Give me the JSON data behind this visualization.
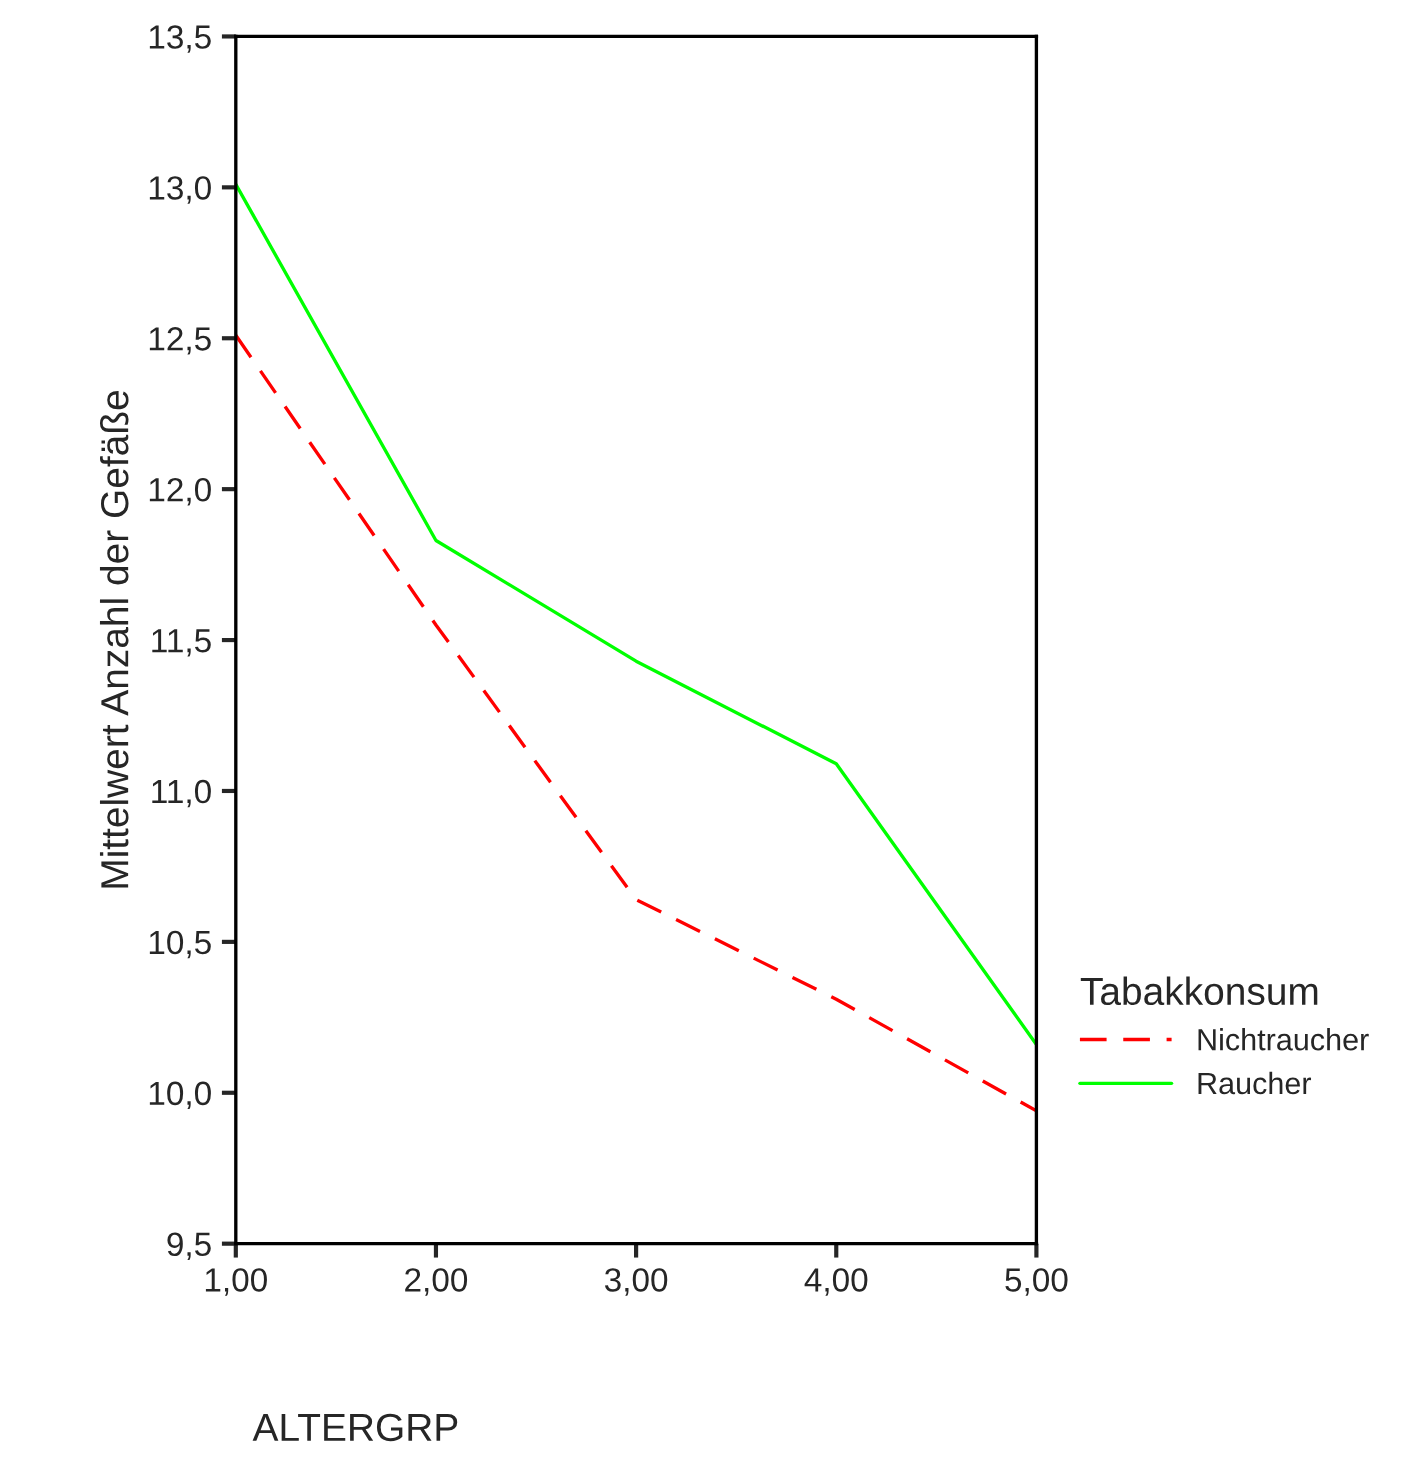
{
  "chart_data": {
    "type": "line",
    "xlabel": "ALTERGRP",
    "ylabel": "Mittelwert Anzahl der Gefäße",
    "legend_title": "Tabakkonsum",
    "legend": "right",
    "grid": false,
    "x": [
      1,
      2,
      3,
      4,
      5
    ],
    "series": [
      {
        "name": "Nichtraucher",
        "color": "#ff0000",
        "line_style": "dashed",
        "values": [
          12.51,
          11.55,
          10.64,
          10.31,
          9.94
        ]
      },
      {
        "name": "Raucher",
        "color": "#00ff00",
        "line_style": "solid",
        "values": [
          13.01,
          11.83,
          11.43,
          11.09,
          10.16
        ]
      }
    ],
    "xlim": [
      1,
      5
    ],
    "xticks": [
      {
        "value": 1,
        "label": "1,00"
      },
      {
        "value": 2,
        "label": "2,00"
      },
      {
        "value": 3,
        "label": "3,00"
      },
      {
        "value": 4,
        "label": "4,00"
      },
      {
        "value": 5,
        "label": "5,00"
      }
    ],
    "ylim": [
      9.5,
      13.5
    ],
    "yticks": [
      {
        "value": 9.5,
        "label": "9,5"
      },
      {
        "value": 10,
        "label": "10,0"
      },
      {
        "value": 10.5,
        "label": "10,5"
      },
      {
        "value": 11,
        "label": "11,0"
      },
      {
        "value": 11.5,
        "label": "11,5"
      },
      {
        "value": 12,
        "label": "12,0"
      },
      {
        "value": 12.5,
        "label": "12,5"
      },
      {
        "value": 13,
        "label": "13,0"
      },
      {
        "value": 13.5,
        "label": "13,5"
      }
    ]
  }
}
